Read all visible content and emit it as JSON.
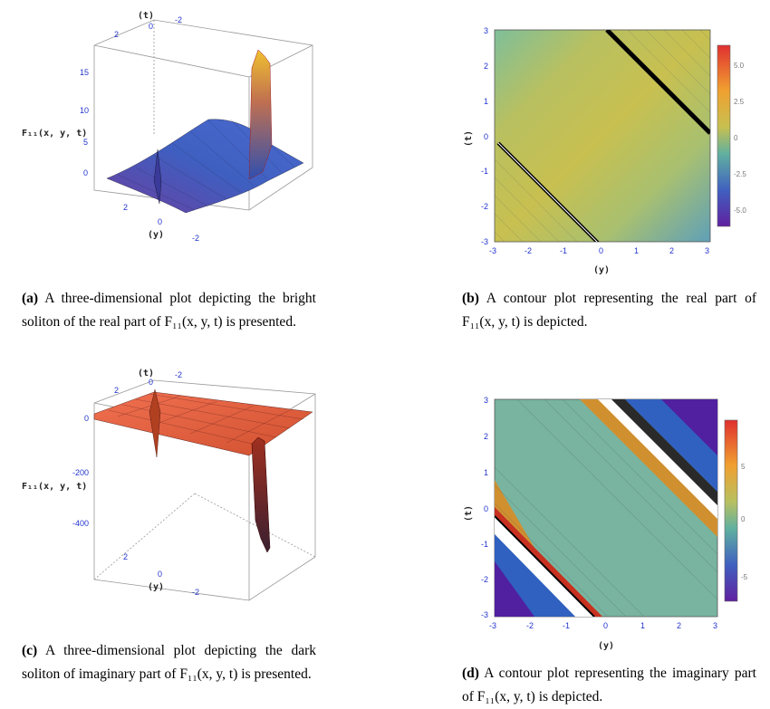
{
  "panels": [
    {
      "id": "a",
      "caption_tag": "(a)",
      "caption_text": "A three-dimensional plot depicting the bright soliton of the real part of F₁₁(x, y, t) is presented.",
      "chart_data": {
        "type": "surface3d",
        "z_axis_label": "F₁₁(x, y, t)",
        "t_axis_label": "(t)",
        "y_axis_label": "(y)",
        "z_ticks": [
          "15",
          "10",
          "5",
          "0"
        ],
        "t_ticks": [
          "2",
          "0",
          "-2"
        ],
        "y_ticks": [
          "2",
          "0",
          "-2"
        ],
        "colors": {
          "low": "#6a3fa0",
          "mid": "#3f5fc0",
          "high": "#f0b020"
        }
      }
    },
    {
      "id": "b",
      "caption_tag": "(b)",
      "caption_text": "A contour plot representing the real part of F₁₁(x, y, t) is depicted.",
      "chart_data": {
        "type": "contour",
        "x_label": "(y)",
        "y_label": "(t)",
        "x_ticks": [
          "-3",
          "-2",
          "-1",
          "0",
          "1",
          "2",
          "3"
        ],
        "y_ticks": [
          "3",
          "2",
          "1",
          "0",
          "-1",
          "-2",
          "-3"
        ],
        "colorbar_ticks": [
          "5.0",
          "2.5",
          "0",
          "-2.5",
          "-5.0"
        ]
      }
    },
    {
      "id": "c",
      "caption_tag": "(c)",
      "caption_text": "A three-dimensional plot depicting the dark soliton of imaginary part of F₁₁(x, y, t) is presented.",
      "chart_data": {
        "type": "surface3d",
        "z_axis_label": "F₁₁(x, y, t)",
        "t_axis_label": "(t)",
        "y_axis_label": "(y)",
        "z_ticks": [
          "0",
          "-200",
          "-400"
        ],
        "t_ticks": [
          "2",
          "0",
          "-2"
        ],
        "y_ticks": [
          "2",
          "0",
          "-2"
        ],
        "colors": {
          "surface": "#e06040",
          "dark": "#802010"
        }
      }
    },
    {
      "id": "d",
      "caption_tag": "(d)",
      "caption_text": "A contour plot representing the imaginary part of F₁₁(x, y, t) is depicted.",
      "chart_data": {
        "type": "contour",
        "x_label": "(y)",
        "y_label": "(t)",
        "x_ticks": [
          "-3",
          "-2",
          "-1",
          "0",
          "1",
          "2",
          "3"
        ],
        "y_ticks": [
          "3",
          "2",
          "1",
          "0",
          "-1",
          "-2",
          "-3"
        ],
        "colorbar_ticks": [
          "5",
          "0",
          "-5"
        ]
      }
    }
  ]
}
